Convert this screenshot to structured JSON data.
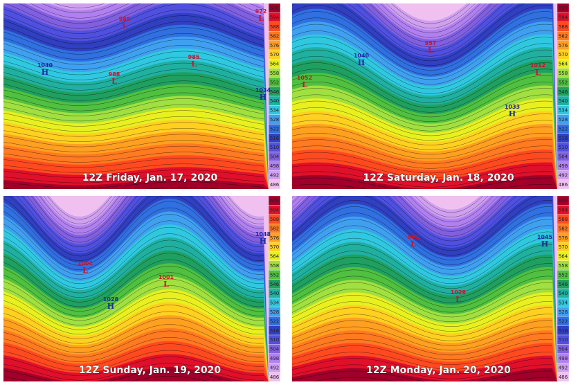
{
  "panels": [
    {
      "caption": "12Z Friday, Jan. 17, 2020",
      "centers": [
        {
          "value": "989",
          "letter": "L"
        },
        {
          "value": "972",
          "letter": "L"
        },
        {
          "value": "988",
          "letter": "L"
        },
        {
          "value": "985",
          "letter": "L"
        },
        {
          "value": "1040",
          "letter": "H"
        },
        {
          "value": "1034",
          "letter": "H"
        }
      ]
    },
    {
      "caption": "12Z Saturday, Jan. 18, 2020",
      "centers": [
        {
          "value": "957",
          "letter": "L"
        },
        {
          "value": "1040",
          "letter": "H"
        },
        {
          "value": "1052",
          "letter": "L"
        },
        {
          "value": "1012",
          "letter": "L"
        },
        {
          "value": "1033",
          "letter": "H"
        }
      ]
    },
    {
      "caption": "12Z Sunday, Jan. 19, 2020",
      "centers": [
        {
          "value": "1001",
          "letter": "L"
        },
        {
          "value": "1001",
          "letter": "L"
        },
        {
          "value": "1028",
          "letter": "H"
        },
        {
          "value": "1048",
          "letter": "H"
        }
      ]
    },
    {
      "caption": "12Z Monday, Jan. 20, 2020",
      "centers": [
        {
          "value": "991",
          "letter": "L"
        },
        {
          "value": "1028",
          "letter": "L"
        },
        {
          "value": "1045",
          "letter": "H"
        }
      ]
    }
  ],
  "colorbar": {
    "labels": [
      600,
      594,
      588,
      582,
      576,
      570,
      564,
      558,
      552,
      546,
      540,
      534,
      528,
      522,
      516,
      510,
      504,
      498,
      492,
      486
    ]
  }
}
